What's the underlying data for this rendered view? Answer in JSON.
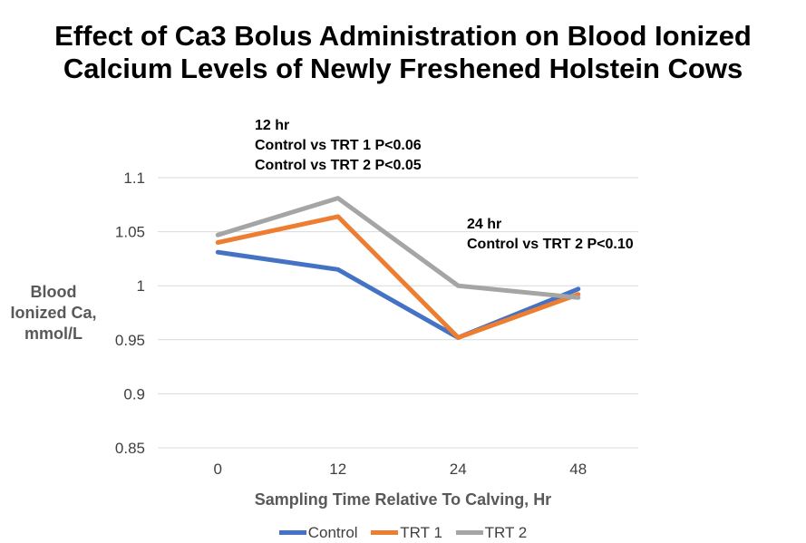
{
  "chart_data": {
    "type": "line",
    "title_lines": [
      "Effect of Ca3 Bolus Administration on Blood Ionized",
      "Calcium Levels of Newly Freshened Holstein Cows"
    ],
    "ylabel_lines": [
      "Blood",
      "Ionized Ca,",
      "mmol/L"
    ],
    "xlabel": "Sampling Time Relative To Calving, Hr",
    "categories": [
      "0",
      "12",
      "24",
      "48"
    ],
    "ylim": [
      0.85,
      1.1
    ],
    "yticks": [
      0.85,
      0.9,
      0.95,
      1,
      1.05,
      1.1
    ],
    "ytick_labels": [
      "0.85",
      "0.9",
      "0.95",
      "1",
      "1.05",
      "1.1"
    ],
    "grid": true,
    "legend_position": "bottom",
    "series": [
      {
        "name": "Control",
        "color": "#4472C4",
        "values": [
          1.031,
          1.015,
          0.952,
          0.997
        ]
      },
      {
        "name": "TRT 1",
        "color": "#ED7D31",
        "values": [
          1.04,
          1.064,
          0.952,
          0.992
        ]
      },
      {
        "name": "TRT 2",
        "color": "#A5A5A5",
        "values": [
          1.047,
          1.081,
          1.0,
          0.989
        ]
      }
    ],
    "annotations": [
      {
        "lines": [
          "12 hr",
          "Control vs TRT 1 P<0.06",
          "Control vs TRT 2 P<0.05"
        ]
      },
      {
        "lines": [
          "24 hr",
          "Control vs TRT 2 P<0.10"
        ]
      }
    ]
  }
}
